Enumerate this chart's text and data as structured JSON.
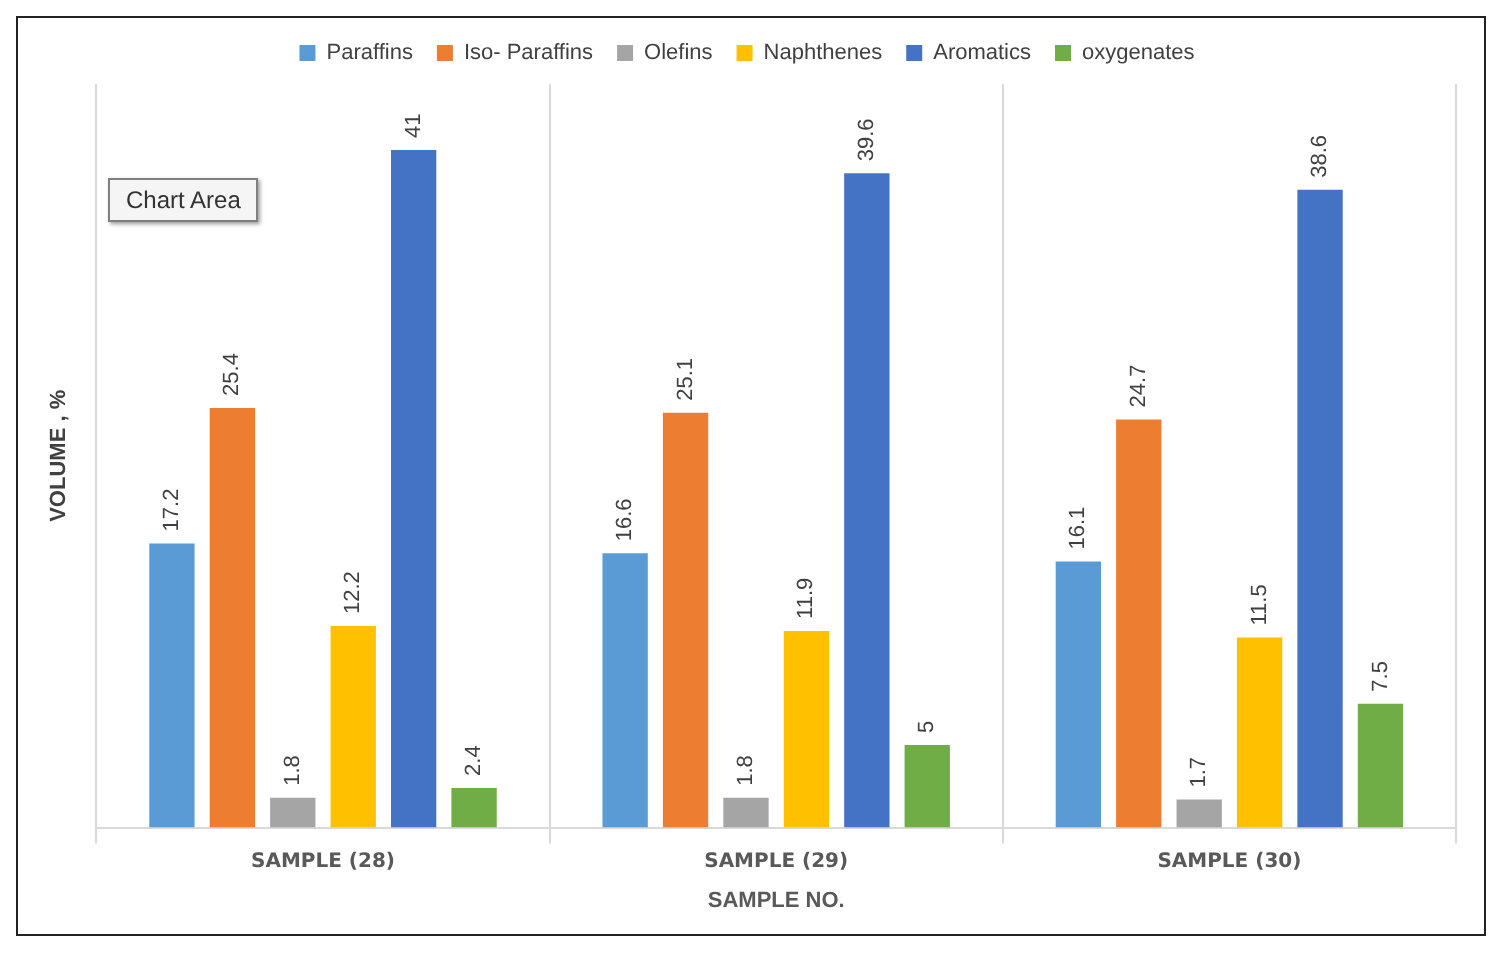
{
  "chart_data": {
    "type": "bar",
    "xlabel": "SAMPLE NO.",
    "ylabel": "VOLUME , %",
    "categories": [
      "SAMPLE (28)",
      "SAMPLE (29)",
      "SAMPLE (30)"
    ],
    "series": [
      {
        "name": "Paraffins",
        "color": "#5b9bd5",
        "values": [
          17.2,
          16.6,
          16.1
        ]
      },
      {
        "name": "Iso- Paraffins",
        "color": "#ed7d31",
        "values": [
          25.4,
          25.1,
          24.7
        ]
      },
      {
        "name": "Olefins",
        "color": "#a5a5a5",
        "values": [
          1.8,
          1.8,
          1.7
        ]
      },
      {
        "name": "Naphthenes",
        "color": "#ffc000",
        "values": [
          12.2,
          11.9,
          11.5
        ]
      },
      {
        "name": "Aromatics",
        "color": "#4472c4",
        "values": [
          41,
          39.6,
          38.6
        ]
      },
      {
        "name": "oxygenates",
        "color": "#70ad47",
        "values": [
          2.4,
          5,
          7.5
        ]
      }
    ],
    "data_labels": true,
    "legend": "top",
    "grid": "x",
    "tick_labels": "x",
    "annotations": [
      "Chart Area"
    ]
  }
}
